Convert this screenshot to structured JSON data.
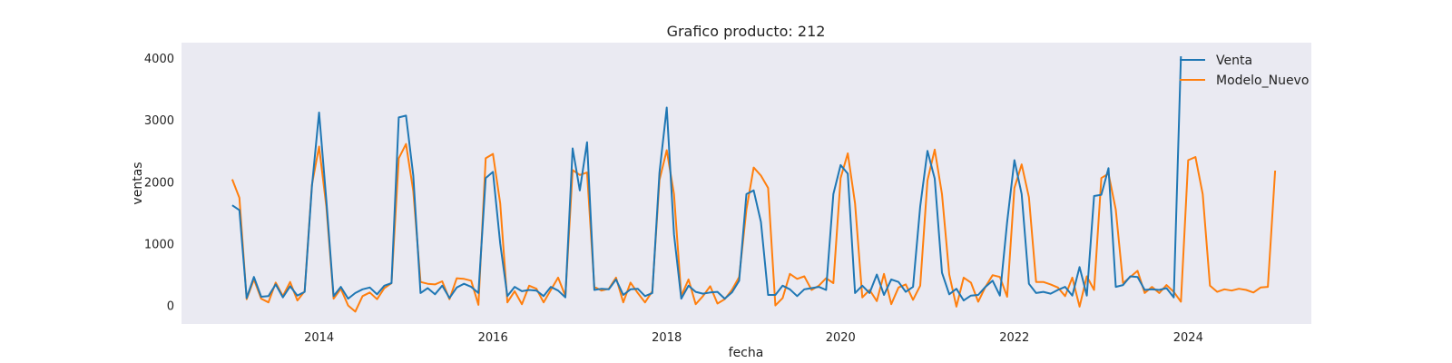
{
  "chart_data": {
    "type": "line",
    "title": "Grafico producto: 212",
    "xlabel": "fecha",
    "ylabel": "ventas",
    "x_start": "2013-01",
    "x_frequency": "monthly",
    "xlim": [
      "2012-06-01",
      "2025-06-01"
    ],
    "ylim": [
      -300,
      4250
    ],
    "x_ticks": [
      "2014",
      "2016",
      "2018",
      "2020",
      "2022",
      "2024"
    ],
    "y_ticks": [
      0,
      1000,
      2000,
      3000,
      4000
    ],
    "grid": false,
    "legend_position": "top-right",
    "background": "#eaeaf2",
    "series": [
      {
        "name": "Venta",
        "color": "#1f77b4",
        "values": [
          1620,
          1540,
          120,
          460,
          140,
          150,
          340,
          130,
          310,
          160,
          220,
          1920,
          3120,
          1700,
          150,
          300,
          110,
          200,
          260,
          290,
          180,
          320,
          360,
          3040,
          3070,
          2100,
          200,
          280,
          180,
          320,
          120,
          290,
          350,
          300,
          200,
          2060,
          2160,
          1000,
          150,
          300,
          230,
          250,
          240,
          150,
          300,
          240,
          130,
          2540,
          1860,
          2640,
          250,
          270,
          260,
          420,
          170,
          260,
          270,
          150,
          200,
          2150,
          3200,
          1150,
          110,
          320,
          220,
          190,
          210,
          220,
          110,
          210,
          400,
          1800,
          1860,
          1350,
          170,
          170,
          320,
          260,
          150,
          260,
          280,
          300,
          250,
          1800,
          2270,
          2130,
          200,
          320,
          200,
          500,
          170,
          420,
          380,
          220,
          300,
          1600,
          2500,
          2050,
          530,
          180,
          270,
          80,
          160,
          170,
          300,
          400,
          160,
          1350,
          2350,
          1800,
          350,
          200,
          220,
          190,
          250,
          300,
          160,
          620,
          160,
          1770,
          1790,
          2220,
          300,
          330,
          470,
          460,
          250,
          260,
          250,
          280,
          130,
          4030
        ]
      },
      {
        "name": "Modelo_Nuevo",
        "color": "#ff7f0e",
        "values": [
          2040,
          1740,
          100,
          420,
          110,
          50,
          370,
          150,
          380,
          80,
          230,
          1950,
          2570,
          1600,
          110,
          270,
          0,
          -100,
          150,
          210,
          100,
          280,
          360,
          2380,
          2610,
          1850,
          380,
          350,
          340,
          390,
          100,
          440,
          430,
          400,
          10,
          2380,
          2450,
          1650,
          50,
          230,
          20,
          320,
          270,
          50,
          250,
          450,
          150,
          2190,
          2110,
          2150,
          300,
          240,
          270,
          450,
          50,
          370,
          200,
          50,
          230,
          2030,
          2510,
          1800,
          150,
          420,
          20,
          150,
          310,
          30,
          100,
          250,
          460,
          1550,
          2230,
          2100,
          1900,
          0,
          120,
          510,
          430,
          470,
          250,
          320,
          440,
          360,
          2060,
          2460,
          1650,
          130,
          250,
          70,
          510,
          20,
          290,
          340,
          90,
          320,
          2020,
          2520,
          1800,
          500,
          -20,
          450,
          370,
          60,
          300,
          490,
          460,
          140,
          1900,
          2280,
          1750,
          380,
          380,
          340,
          290,
          150,
          450,
          -20,
          470,
          250,
          2060,
          2130,
          1550,
          360,
          460,
          560,
          200,
          300,
          200,
          330,
          220,
          60,
          2350,
          2400,
          1800,
          320,
          220,
          260,
          240,
          270,
          250,
          210,
          290,
          300,
          2180
        ]
      }
    ]
  }
}
